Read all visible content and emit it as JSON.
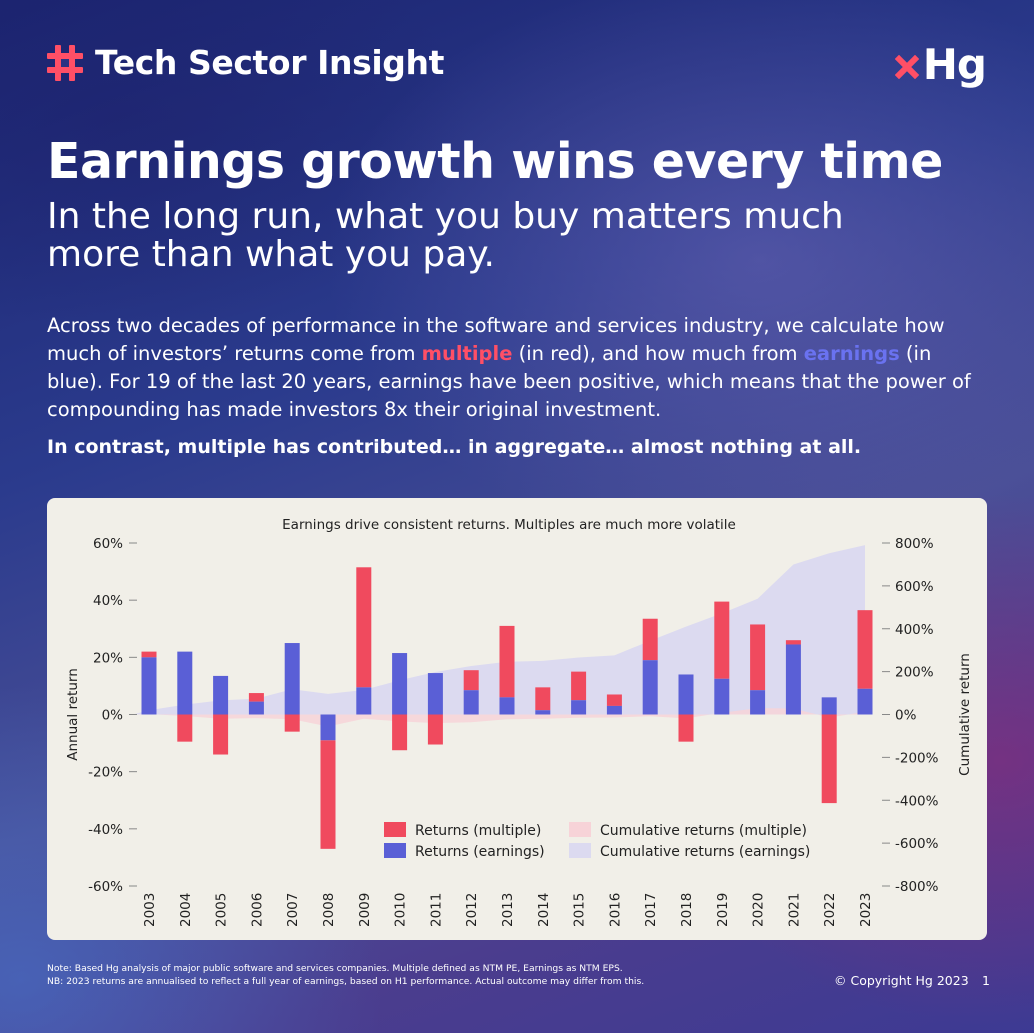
{
  "header": {
    "brand": "Tech Sector Insight",
    "brand_icon": "hash-grid-icon",
    "logo_text": "Hg",
    "logo_icon": "x-mark-icon",
    "accent": "#ff4f66"
  },
  "headline": "Earnings growth wins every time",
  "subhead": "In the long run, what you buy matters much more than what you pay.",
  "intro": {
    "p1_a": "Across two decades of performance in the software and services industry, we calculate how much of investors’ returns come from ",
    "p1_multiple": "multiple",
    "p1_b": " (in red), and how much from ",
    "p1_earnings": "earnings",
    "p1_c": " (in blue). For 19 of the last 20 years, earnings have been positive, which means that the power of compounding has made investors 8x their original investment."
  },
  "contrast": "In contrast, multiple has contributed… in aggregate… almost nothing at all.",
  "chart_data": {
    "type": "bar",
    "title": "Earnings drive consistent returns. Multiples are much more volatile",
    "ylabel": "Annual return",
    "y2label": "Cumulative return",
    "ylim": [
      -60,
      60
    ],
    "y2lim": [
      -800,
      800
    ],
    "yticks": [
      "60%",
      "40%",
      "20%",
      "0%",
      "-20%",
      "-40%",
      "-60%"
    ],
    "y2ticks": [
      "800%",
      "600%",
      "400%",
      "200%",
      "0%",
      "-200%",
      "-400%",
      "-600%",
      "-800%"
    ],
    "categories": [
      "2003",
      "2004",
      "2005",
      "2006",
      "2007",
      "2008",
      "2009",
      "2010",
      "2011",
      "2012",
      "2013",
      "2014",
      "2015",
      "2016",
      "2017",
      "2018",
      "2019",
      "2020",
      "2021",
      "2022",
      "2023"
    ],
    "series": [
      {
        "name": "Returns (multiple)",
        "kind": "bar",
        "color": "#f04a5e",
        "values": [
          2,
          -9.5,
          -14,
          3,
          -6,
          -38,
          42,
          -12.5,
          -10.5,
          7,
          25,
          8,
          10,
          4,
          14.5,
          -9.5,
          27,
          23,
          1.5,
          -31,
          27.5
        ]
      },
      {
        "name": "Returns (earnings)",
        "kind": "bar",
        "color": "#5a5fd6",
        "values": [
          20,
          22,
          13.5,
          4.5,
          25,
          -9,
          9.5,
          21.5,
          14.5,
          8.5,
          6,
          1.5,
          5,
          3,
          19,
          14,
          12.5,
          8.5,
          24.5,
          6,
          9
        ]
      },
      {
        "name": "Cumulative returns (multiple)",
        "kind": "area",
        "color": "#f7d3d8",
        "axis": "right",
        "values": [
          2,
          -7,
          -20,
          -17,
          -22,
          -56,
          -20,
          -32,
          -40,
          -36,
          -22,
          -20,
          -15,
          -14,
          -8,
          -18,
          8,
          30,
          28,
          -14,
          12
        ]
      },
      {
        "name": "Cumulative returns (earnings)",
        "kind": "area",
        "color": "#dcdaf0",
        "axis": "right",
        "values": [
          20,
          46,
          66,
          74,
          118,
          96,
          114,
          160,
          198,
          226,
          246,
          250,
          266,
          276,
          344,
          410,
          472,
          540,
          700,
          752,
          790
        ]
      }
    ],
    "legend": "bottom-center"
  },
  "footnote": {
    "line1": "Note: Based Hg analysis of major public software and services companies. Multiple defined as NTM PE, Earnings as NTM EPS.",
    "line2": "NB: 2023 returns are annualised to reflect a full year of earnings, based on H1 performance. Actual outcome may differ from this."
  },
  "copyright": "© Copyright Hg 2023",
  "page_number": "1"
}
